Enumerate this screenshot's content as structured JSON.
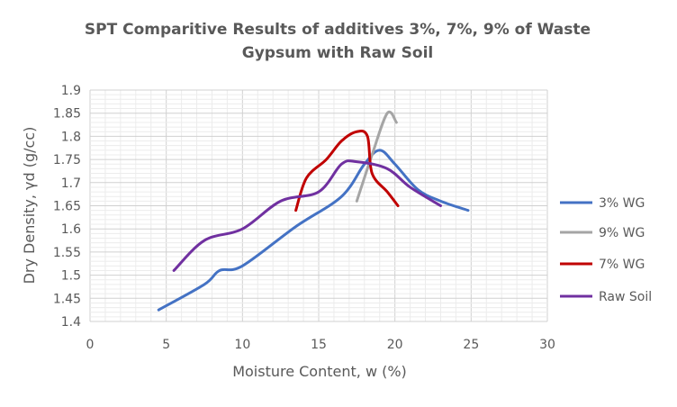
{
  "chart_data": {
    "type": "line",
    "title_line1": "SPT Comparitive Results of additives 3%, 7%, 9% of Waste",
    "title_line2": "Gypsum with Raw Soil",
    "xlabel": "Moisture Content, w (%)",
    "ylabel": "Dry Density, γd (g/cc)",
    "xlim": [
      0,
      30
    ],
    "ylim": [
      1.4,
      1.9
    ],
    "x_ticks": [
      "0",
      "5",
      "10",
      "15",
      "20",
      "25",
      "30"
    ],
    "y_ticks": [
      "1.4",
      "1.45",
      "1.5",
      "1.55",
      "1.6",
      "1.65",
      "1.7",
      "1.75",
      "1.8",
      "1.85",
      "1.9"
    ],
    "grid": true,
    "legend_position": "right",
    "series": [
      {
        "name": "3% WG",
        "color": "#4472C4",
        "points": [
          [
            4.5,
            1.425
          ],
          [
            7.5,
            1.48
          ],
          [
            8.5,
            1.51
          ],
          [
            10,
            1.52
          ],
          [
            13.5,
            1.605
          ],
          [
            16.5,
            1.67
          ],
          [
            18,
            1.74
          ],
          [
            19,
            1.77
          ],
          [
            20,
            1.74
          ],
          [
            21.5,
            1.685
          ],
          [
            23,
            1.66
          ],
          [
            24.8,
            1.64
          ]
        ]
      },
      {
        "name": "9% WG",
        "color": "#A5A5A5",
        "points": [
          [
            17.5,
            1.66
          ],
          [
            18.5,
            1.76
          ],
          [
            19.5,
            1.85
          ],
          [
            20.1,
            1.83
          ]
        ]
      },
      {
        "name": "7% WG",
        "color": "#C00000",
        "points": [
          [
            13.5,
            1.64
          ],
          [
            14.2,
            1.71
          ],
          [
            15.5,
            1.75
          ],
          [
            16.5,
            1.79
          ],
          [
            17.5,
            1.81
          ],
          [
            18.2,
            1.8
          ],
          [
            18.5,
            1.72
          ],
          [
            19.5,
            1.68
          ],
          [
            20.2,
            1.65
          ]
        ]
      },
      {
        "name": "Raw Soil",
        "color": "#7030A0",
        "points": [
          [
            5.5,
            1.51
          ],
          [
            7.5,
            1.575
          ],
          [
            10,
            1.6
          ],
          [
            12.5,
            1.66
          ],
          [
            15,
            1.68
          ],
          [
            16.5,
            1.74
          ],
          [
            17.5,
            1.745
          ],
          [
            19.5,
            1.73
          ],
          [
            21,
            1.69
          ],
          [
            23,
            1.65
          ]
        ]
      }
    ]
  }
}
